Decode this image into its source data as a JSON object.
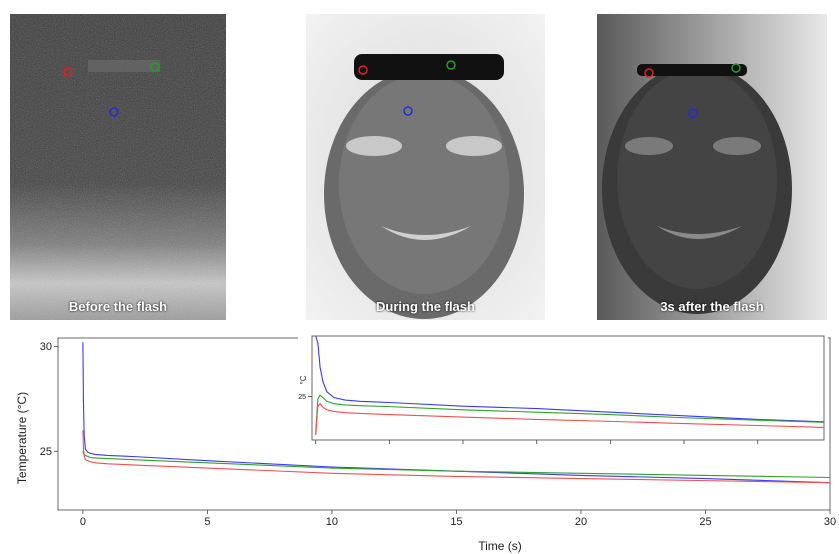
{
  "panels": [
    {
      "caption": "Before the flash",
      "markers": [
        {
          "color": "#e02020"
        },
        {
          "color": "#20a020"
        },
        {
          "color": "#2030d0"
        }
      ]
    },
    {
      "caption": "During the flash",
      "markers": [
        {
          "color": "#e02020"
        },
        {
          "color": "#20a020"
        },
        {
          "color": "#2030d0"
        }
      ]
    },
    {
      "caption": "3s after the flash",
      "markers": [
        {
          "color": "#e02020"
        },
        {
          "color": "#20a020"
        },
        {
          "color": "#2030d0"
        }
      ]
    }
  ],
  "chart_data": [
    {
      "type": "line",
      "title": "",
      "xlabel": "Time (s)",
      "ylabel": "Temperature (°C)",
      "xlim": [
        -1,
        30
      ],
      "ylim": [
        22.2,
        30.4
      ],
      "xticks": [
        0,
        5,
        10,
        15,
        20,
        25,
        30
      ],
      "yticks": [
        25,
        30
      ],
      "series": [
        {
          "color": "#3a3af0",
          "x": [
            0,
            0.02,
            0.05,
            0.1,
            0.2,
            0.3,
            0.5,
            1,
            2,
            5,
            10,
            15,
            20,
            25,
            30
          ],
          "y": [
            30.2,
            27.5,
            25.8,
            25.1,
            24.95,
            24.9,
            24.85,
            24.8,
            24.75,
            24.55,
            24.25,
            24.05,
            23.85,
            23.7,
            23.5
          ]
        },
        {
          "color": "#30a030",
          "x": [
            0,
            0.02,
            0.05,
            0.1,
            0.2,
            0.3,
            0.5,
            1,
            2,
            5,
            10,
            15,
            20,
            25,
            30
          ],
          "y": [
            25.0,
            24.9,
            24.85,
            24.8,
            24.75,
            24.7,
            24.68,
            24.65,
            24.6,
            24.45,
            24.2,
            24.05,
            23.95,
            23.85,
            23.75
          ]
        },
        {
          "color": "#f05050",
          "x": [
            0,
            0.02,
            0.05,
            0.1,
            0.2,
            0.3,
            0.5,
            1,
            2,
            5,
            10,
            15,
            20,
            25,
            30
          ],
          "y": [
            26.0,
            25.2,
            24.8,
            24.6,
            24.55,
            24.5,
            24.45,
            24.4,
            24.35,
            24.2,
            23.95,
            23.8,
            23.7,
            23.6,
            23.5
          ]
        }
      ]
    },
    {
      "type": "line",
      "title": "",
      "xlabel": "",
      "ylabel": "°C",
      "xlim": [
        -0.05,
        6.9
      ],
      "ylim": [
        23.2,
        27.5
      ],
      "xticks": [
        0,
        1,
        2,
        3,
        4,
        5,
        6
      ],
      "yticks": [
        25
      ],
      "series": [
        {
          "color": "#3a3af0",
          "x": [
            0,
            0.03,
            0.06,
            0.1,
            0.15,
            0.25,
            0.4,
            0.6,
            1,
            2,
            3,
            4,
            5,
            6,
            6.9
          ],
          "y": [
            27.5,
            27.2,
            26.2,
            25.6,
            25.2,
            24.95,
            24.85,
            24.8,
            24.75,
            24.6,
            24.5,
            24.35,
            24.2,
            24.05,
            23.95
          ]
        },
        {
          "color": "#30a030",
          "x": [
            0,
            0.03,
            0.06,
            0.1,
            0.15,
            0.25,
            0.4,
            0.6,
            1,
            2,
            3,
            4,
            5,
            6,
            6.9
          ],
          "y": [
            23.5,
            24.9,
            25.05,
            24.95,
            24.8,
            24.7,
            24.65,
            24.62,
            24.58,
            24.45,
            24.35,
            24.25,
            24.12,
            24.02,
            23.93
          ]
        },
        {
          "color": "#f05050",
          "x": [
            0,
            0.03,
            0.06,
            0.1,
            0.15,
            0.25,
            0.4,
            0.6,
            1,
            2,
            3,
            4,
            5,
            6,
            6.9
          ],
          "y": [
            23.4,
            24.6,
            24.7,
            24.55,
            24.45,
            24.38,
            24.33,
            24.3,
            24.25,
            24.15,
            24.05,
            23.97,
            23.88,
            23.8,
            23.72
          ]
        }
      ]
    }
  ]
}
